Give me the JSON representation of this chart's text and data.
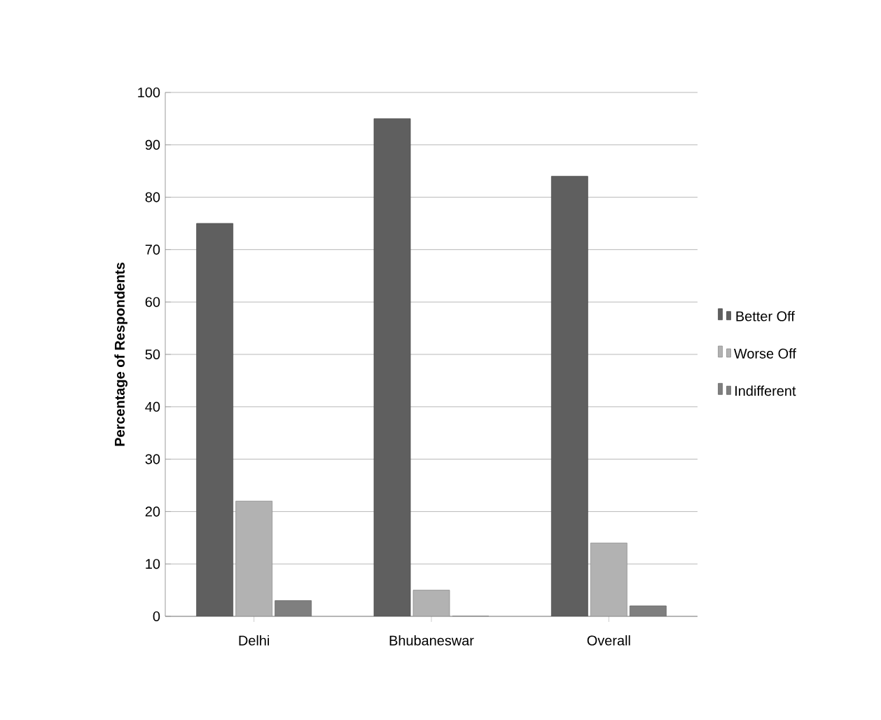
{
  "chart_data": {
    "type": "bar",
    "ylabel": "Percentage of Respondents",
    "categories": [
      "Delhi",
      "Bhubaneswar",
      "Overall"
    ],
    "series": [
      {
        "name": "Better Off",
        "color": "#5f5f5f",
        "values": [
          75,
          95,
          84
        ]
      },
      {
        "name": "Worse Off",
        "color": "#b2b2b2",
        "values": [
          22,
          5,
          14
        ]
      },
      {
        "name": "Indifferent",
        "color": "#7f7f7f",
        "values": [
          3,
          0,
          2
        ]
      }
    ],
    "ylim": [
      0,
      100
    ],
    "yticks": [
      0,
      10,
      20,
      30,
      40,
      50,
      60,
      70,
      80,
      90,
      100
    ],
    "grid": "y",
    "legend": "right"
  }
}
